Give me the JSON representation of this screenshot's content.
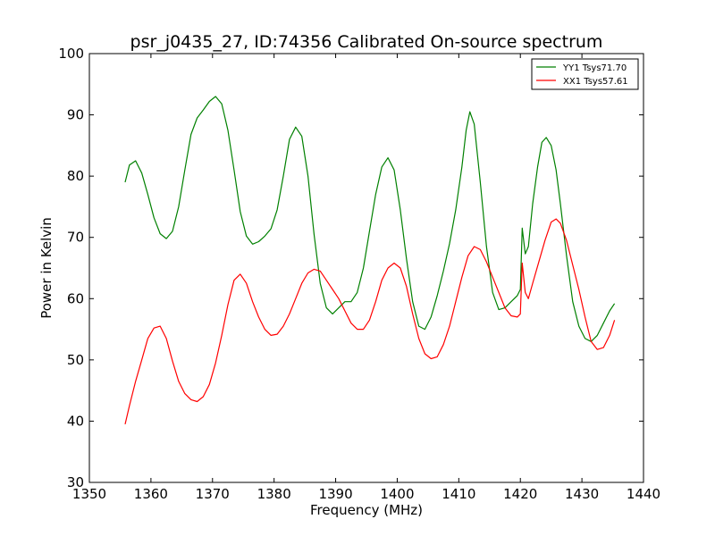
{
  "chart_data": {
    "type": "line",
    "title": "psr_j0435_27, ID:74356 Calibrated On-source spectrum",
    "xlabel": "Frequency (MHz)",
    "ylabel": "Power in Kelvin",
    "xlim": [
      1350,
      1440
    ],
    "ylim": [
      30,
      100
    ],
    "xticks": [
      1350,
      1360,
      1370,
      1380,
      1390,
      1400,
      1410,
      1420,
      1430,
      1440
    ],
    "yticks": [
      30,
      40,
      50,
      60,
      70,
      80,
      90,
      100
    ],
    "grid": false,
    "legend_position": "top-right",
    "series": [
      {
        "name": "YY1 Tsys71.70",
        "color": "#008000",
        "x": [
          1355.8,
          1356.5,
          1357.5,
          1358.5,
          1359.5,
          1360.5,
          1361.5,
          1362.5,
          1363.5,
          1364.5,
          1365.5,
          1366.5,
          1367.5,
          1368.5,
          1369.5,
          1370.5,
          1371.5,
          1372.5,
          1373.5,
          1374.5,
          1375.5,
          1376.5,
          1377.5,
          1378.5,
          1379.5,
          1380.5,
          1381.5,
          1382.5,
          1383.5,
          1384.5,
          1385.5,
          1386.5,
          1387.5,
          1388.5,
          1389.5,
          1390.5,
          1391.5,
          1392.5,
          1393.5,
          1394.5,
          1395.5,
          1396.5,
          1397.5,
          1398.5,
          1399.5,
          1400.5,
          1401.5,
          1402.5,
          1403.5,
          1404.5,
          1405.5,
          1406.5,
          1407.5,
          1408.5,
          1409.5,
          1410.5,
          1411.2,
          1411.8,
          1412.5,
          1413.5,
          1414.5,
          1415.5,
          1416.5,
          1417.5,
          1418.5,
          1419.5,
          1420.0,
          1420.3,
          1420.8,
          1421.3,
          1422.0,
          1422.8,
          1423.5,
          1424.2,
          1425.0,
          1425.8,
          1426.5,
          1427.5,
          1428.5,
          1429.5,
          1430.5,
          1431.5,
          1432.5,
          1433.5,
          1434.5,
          1435.3
        ],
        "values": [
          79.0,
          81.8,
          82.5,
          80.5,
          77.0,
          73.2,
          70.6,
          69.8,
          71.0,
          75.0,
          81.0,
          86.8,
          89.5,
          90.8,
          92.2,
          93.0,
          91.8,
          87.5,
          81.0,
          74.2,
          70.2,
          68.9,
          69.3,
          70.2,
          71.4,
          74.5,
          80.0,
          86.0,
          88.0,
          86.5,
          80.0,
          70.5,
          62.5,
          58.5,
          57.5,
          58.5,
          59.5,
          59.5,
          61.0,
          65.0,
          71.0,
          77.0,
          81.5,
          83.0,
          81.0,
          74.5,
          66.5,
          59.5,
          55.5,
          55.0,
          57.0,
          60.5,
          64.5,
          69.0,
          74.5,
          81.5,
          87.5,
          90.5,
          88.5,
          79.0,
          68.5,
          61.0,
          58.2,
          58.5,
          59.5,
          60.5,
          61.5,
          71.5,
          67.3,
          68.5,
          75.5,
          81.5,
          85.5,
          86.3,
          85.0,
          81.0,
          75.5,
          67.0,
          59.5,
          55.5,
          53.5,
          53.0,
          54.0,
          56.0,
          58.0,
          59.2
        ]
      },
      {
        "name": "XX1 Tsys57.61",
        "color": "#ff0000",
        "x": [
          1355.8,
          1356.5,
          1357.5,
          1358.5,
          1359.5,
          1360.5,
          1361.5,
          1362.5,
          1363.5,
          1364.5,
          1365.5,
          1366.5,
          1367.5,
          1368.5,
          1369.5,
          1370.5,
          1371.5,
          1372.5,
          1373.5,
          1374.5,
          1375.5,
          1376.5,
          1377.5,
          1378.5,
          1379.5,
          1380.5,
          1381.5,
          1382.5,
          1383.5,
          1384.5,
          1385.5,
          1386.5,
          1387.5,
          1388.5,
          1389.5,
          1390.5,
          1391.5,
          1392.5,
          1393.5,
          1394.5,
          1395.5,
          1396.5,
          1397.5,
          1398.5,
          1399.5,
          1400.5,
          1401.5,
          1402.5,
          1403.5,
          1404.5,
          1405.5,
          1406.5,
          1407.5,
          1408.5,
          1409.5,
          1410.5,
          1411.5,
          1412.5,
          1413.5,
          1414.5,
          1415.5,
          1416.5,
          1417.5,
          1418.5,
          1419.5,
          1420.0,
          1420.3,
          1420.8,
          1421.3,
          1422.0,
          1423.0,
          1424.0,
          1425.0,
          1425.8,
          1426.5,
          1427.5,
          1428.5,
          1429.5,
          1430.5,
          1431.5,
          1432.5,
          1433.5,
          1434.5,
          1435.3
        ],
        "values": [
          39.5,
          42.5,
          46.5,
          50.0,
          53.5,
          55.2,
          55.5,
          53.5,
          49.8,
          46.5,
          44.5,
          43.5,
          43.2,
          44.0,
          46.0,
          49.5,
          54.0,
          59.0,
          63.0,
          64.0,
          62.5,
          59.5,
          57.0,
          55.0,
          54.0,
          54.2,
          55.5,
          57.5,
          60.0,
          62.5,
          64.2,
          64.8,
          64.5,
          63.0,
          61.5,
          60.0,
          58.0,
          56.0,
          55.0,
          55.0,
          56.5,
          59.5,
          63.0,
          65.0,
          65.8,
          65.0,
          62.0,
          57.5,
          53.5,
          51.0,
          50.2,
          50.5,
          52.5,
          55.5,
          59.5,
          63.5,
          67.0,
          68.5,
          68.0,
          66.0,
          63.5,
          61.0,
          58.5,
          57.2,
          57.0,
          57.5,
          65.8,
          61.0,
          60.0,
          62.5,
          66.0,
          69.5,
          72.5,
          73.0,
          72.3,
          69.5,
          65.5,
          61.5,
          57.0,
          53.0,
          51.7,
          52.0,
          54.0,
          56.5
        ]
      }
    ]
  }
}
